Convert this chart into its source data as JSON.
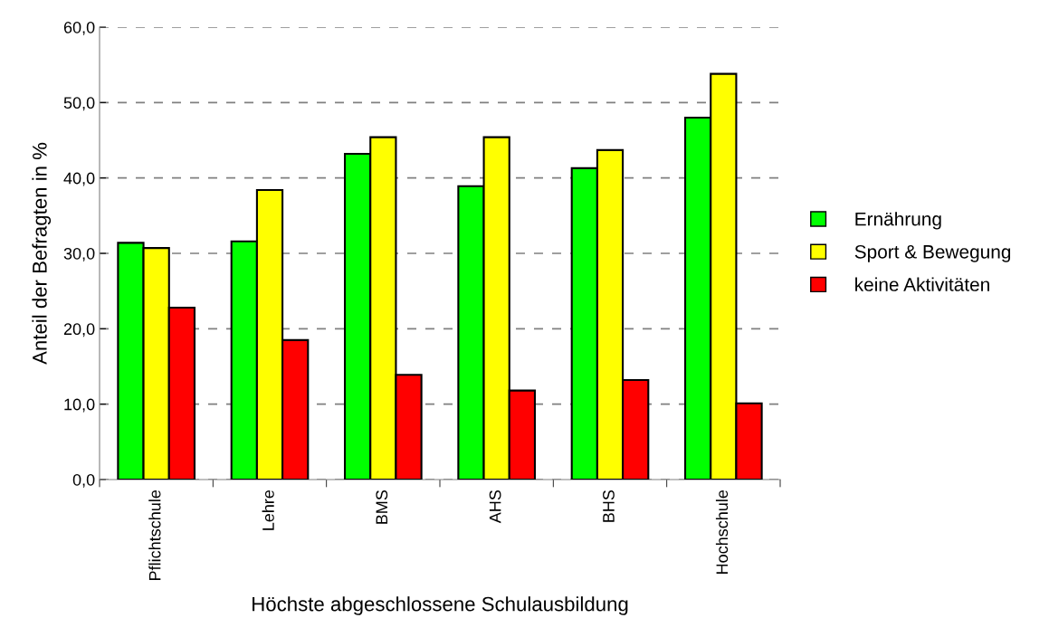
{
  "chart_data": {
    "type": "bar",
    "xlabel": "Höchste abgeschlossene Schulausbildung",
    "ylabel": "Anteil der Befragten in %",
    "categories": [
      "Pflichtschule",
      "Lehre",
      "BMS",
      "AHS",
      "BHS",
      "Hochschule"
    ],
    "series": [
      {
        "name": "Ernährung",
        "color": "#00ff00",
        "values": [
          31.4,
          31.6,
          43.2,
          38.9,
          41.3,
          48.0
        ]
      },
      {
        "name": "Sport & Bewegung",
        "color": "#ffff00",
        "values": [
          30.7,
          38.4,
          45.4,
          45.4,
          43.7,
          53.8
        ]
      },
      {
        "name": "keine Aktivitäten",
        "color": "#ff0000",
        "values": [
          22.8,
          18.5,
          13.9,
          11.8,
          13.2,
          10.1
        ]
      }
    ],
    "ylim": [
      0,
      60
    ],
    "yticks": [
      {
        "value": 0,
        "label": "0,0"
      },
      {
        "value": 10,
        "label": "10,0"
      },
      {
        "value": 20,
        "label": "20,0"
      },
      {
        "value": 30,
        "label": "30,0"
      },
      {
        "value": 40,
        "label": "40,0"
      },
      {
        "value": 50,
        "label": "50,0"
      },
      {
        "value": 60,
        "label": "60,0"
      }
    ],
    "grid": "y",
    "legend": "right"
  }
}
